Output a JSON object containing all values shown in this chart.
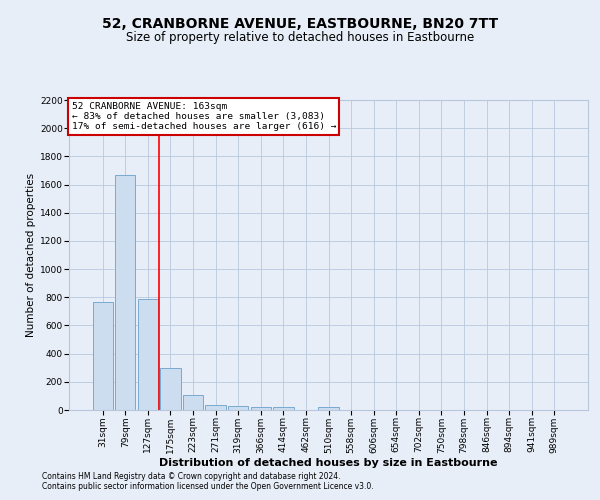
{
  "title": "52, CRANBORNE AVENUE, EASTBOURNE, BN20 7TT",
  "subtitle": "Size of property relative to detached houses in Eastbourne",
  "xlabel": "Distribution of detached houses by size in Eastbourne",
  "ylabel": "Number of detached properties",
  "footnote1": "Contains HM Land Registry data © Crown copyright and database right 2024.",
  "footnote2": "Contains public sector information licensed under the Open Government Licence v3.0.",
  "categories": [
    "31sqm",
    "79sqm",
    "127sqm",
    "175sqm",
    "223sqm",
    "271sqm",
    "319sqm",
    "366sqm",
    "414sqm",
    "462sqm",
    "510sqm",
    "558sqm",
    "606sqm",
    "654sqm",
    "702sqm",
    "750sqm",
    "798sqm",
    "846sqm",
    "894sqm",
    "941sqm",
    "989sqm"
  ],
  "values": [
    770,
    1670,
    790,
    300,
    110,
    38,
    28,
    20,
    18,
    0,
    18,
    0,
    0,
    0,
    0,
    0,
    0,
    0,
    0,
    0,
    0
  ],
  "bar_color": "#ccddf0",
  "bar_edge_color": "#7aaad0",
  "red_line_x": 2.5,
  "annotation_text_line1": "52 CRANBORNE AVENUE: 163sqm",
  "annotation_text_line2": "← 83% of detached houses are smaller (3,083)",
  "annotation_text_line3": "17% of semi-detached houses are larger (616) →",
  "ylim": [
    0,
    2200
  ],
  "yticks": [
    0,
    200,
    400,
    600,
    800,
    1000,
    1200,
    1400,
    1600,
    1800,
    2000,
    2200
  ],
  "background_color": "#e8eef8",
  "grid_color": "#b8c8dc",
  "title_fontsize": 10,
  "subtitle_fontsize": 8.5,
  "annotation_box_color": "#ffffff",
  "annotation_box_edge_color": "#cc0000",
  "ylabel_fontsize": 7.5,
  "xlabel_fontsize": 8,
  "tick_fontsize": 6.5,
  "annotation_fontsize": 6.8,
  "footnote_fontsize": 5.5
}
